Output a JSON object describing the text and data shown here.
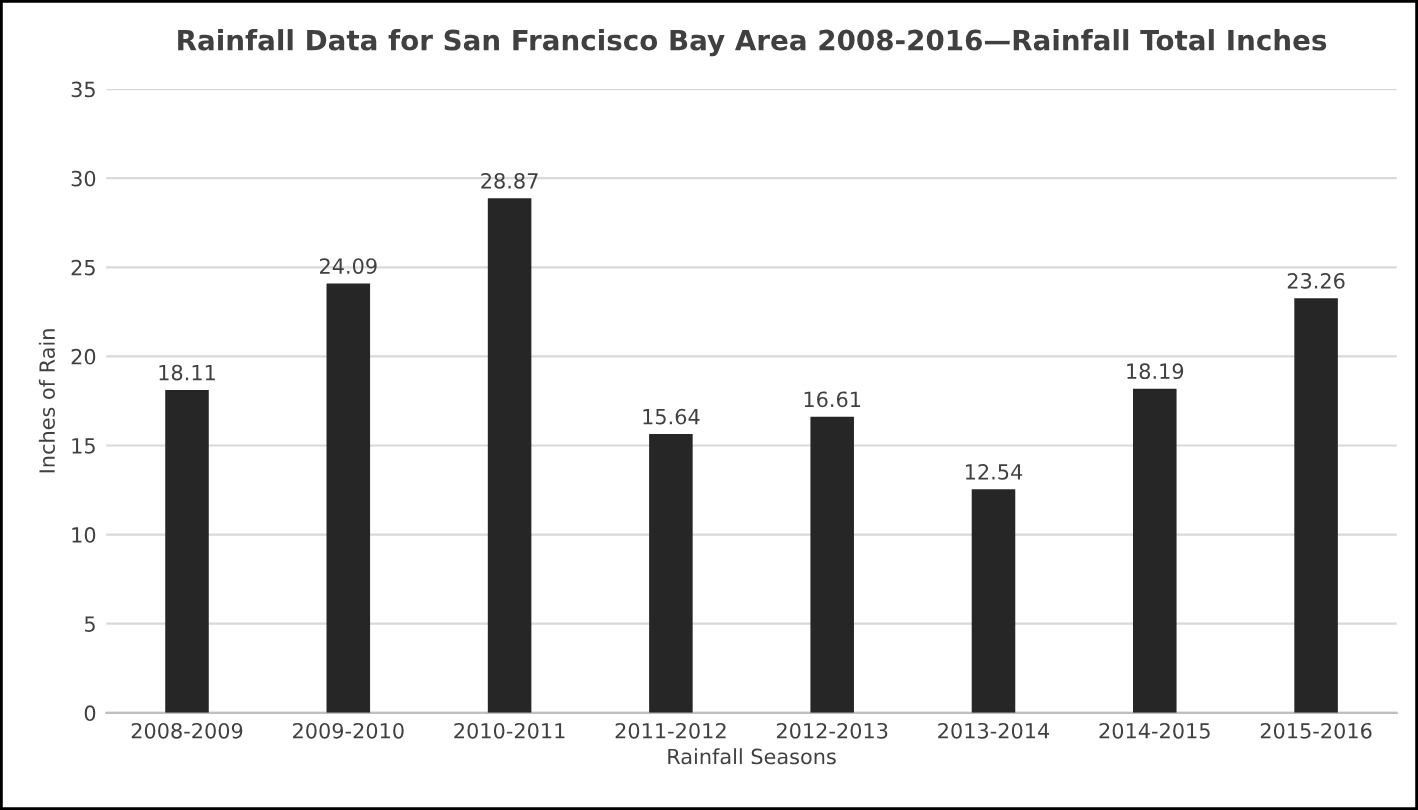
{
  "chart_data": {
    "type": "bar",
    "title": "Rainfall Data for San Francisco Bay Area 2008-2016—Rainfall Total Inches",
    "xlabel": "Rainfall Seasons",
    "ylabel": "Inches of Rain",
    "categories": [
      "2008-2009",
      "2009-2010",
      "2010-2011",
      "2011-2012",
      "2012-2013",
      "2013-2014",
      "2014-2015",
      "2015-2016"
    ],
    "values": [
      18.11,
      24.09,
      28.87,
      15.64,
      16.61,
      12.54,
      18.19,
      23.26
    ],
    "color": "#262626",
    "ylim": [
      0,
      35
    ],
    "yticks": [
      0,
      5,
      10,
      15,
      20,
      25,
      30,
      35
    ],
    "grid": "y",
    "data_labels": true,
    "legend": false
  }
}
